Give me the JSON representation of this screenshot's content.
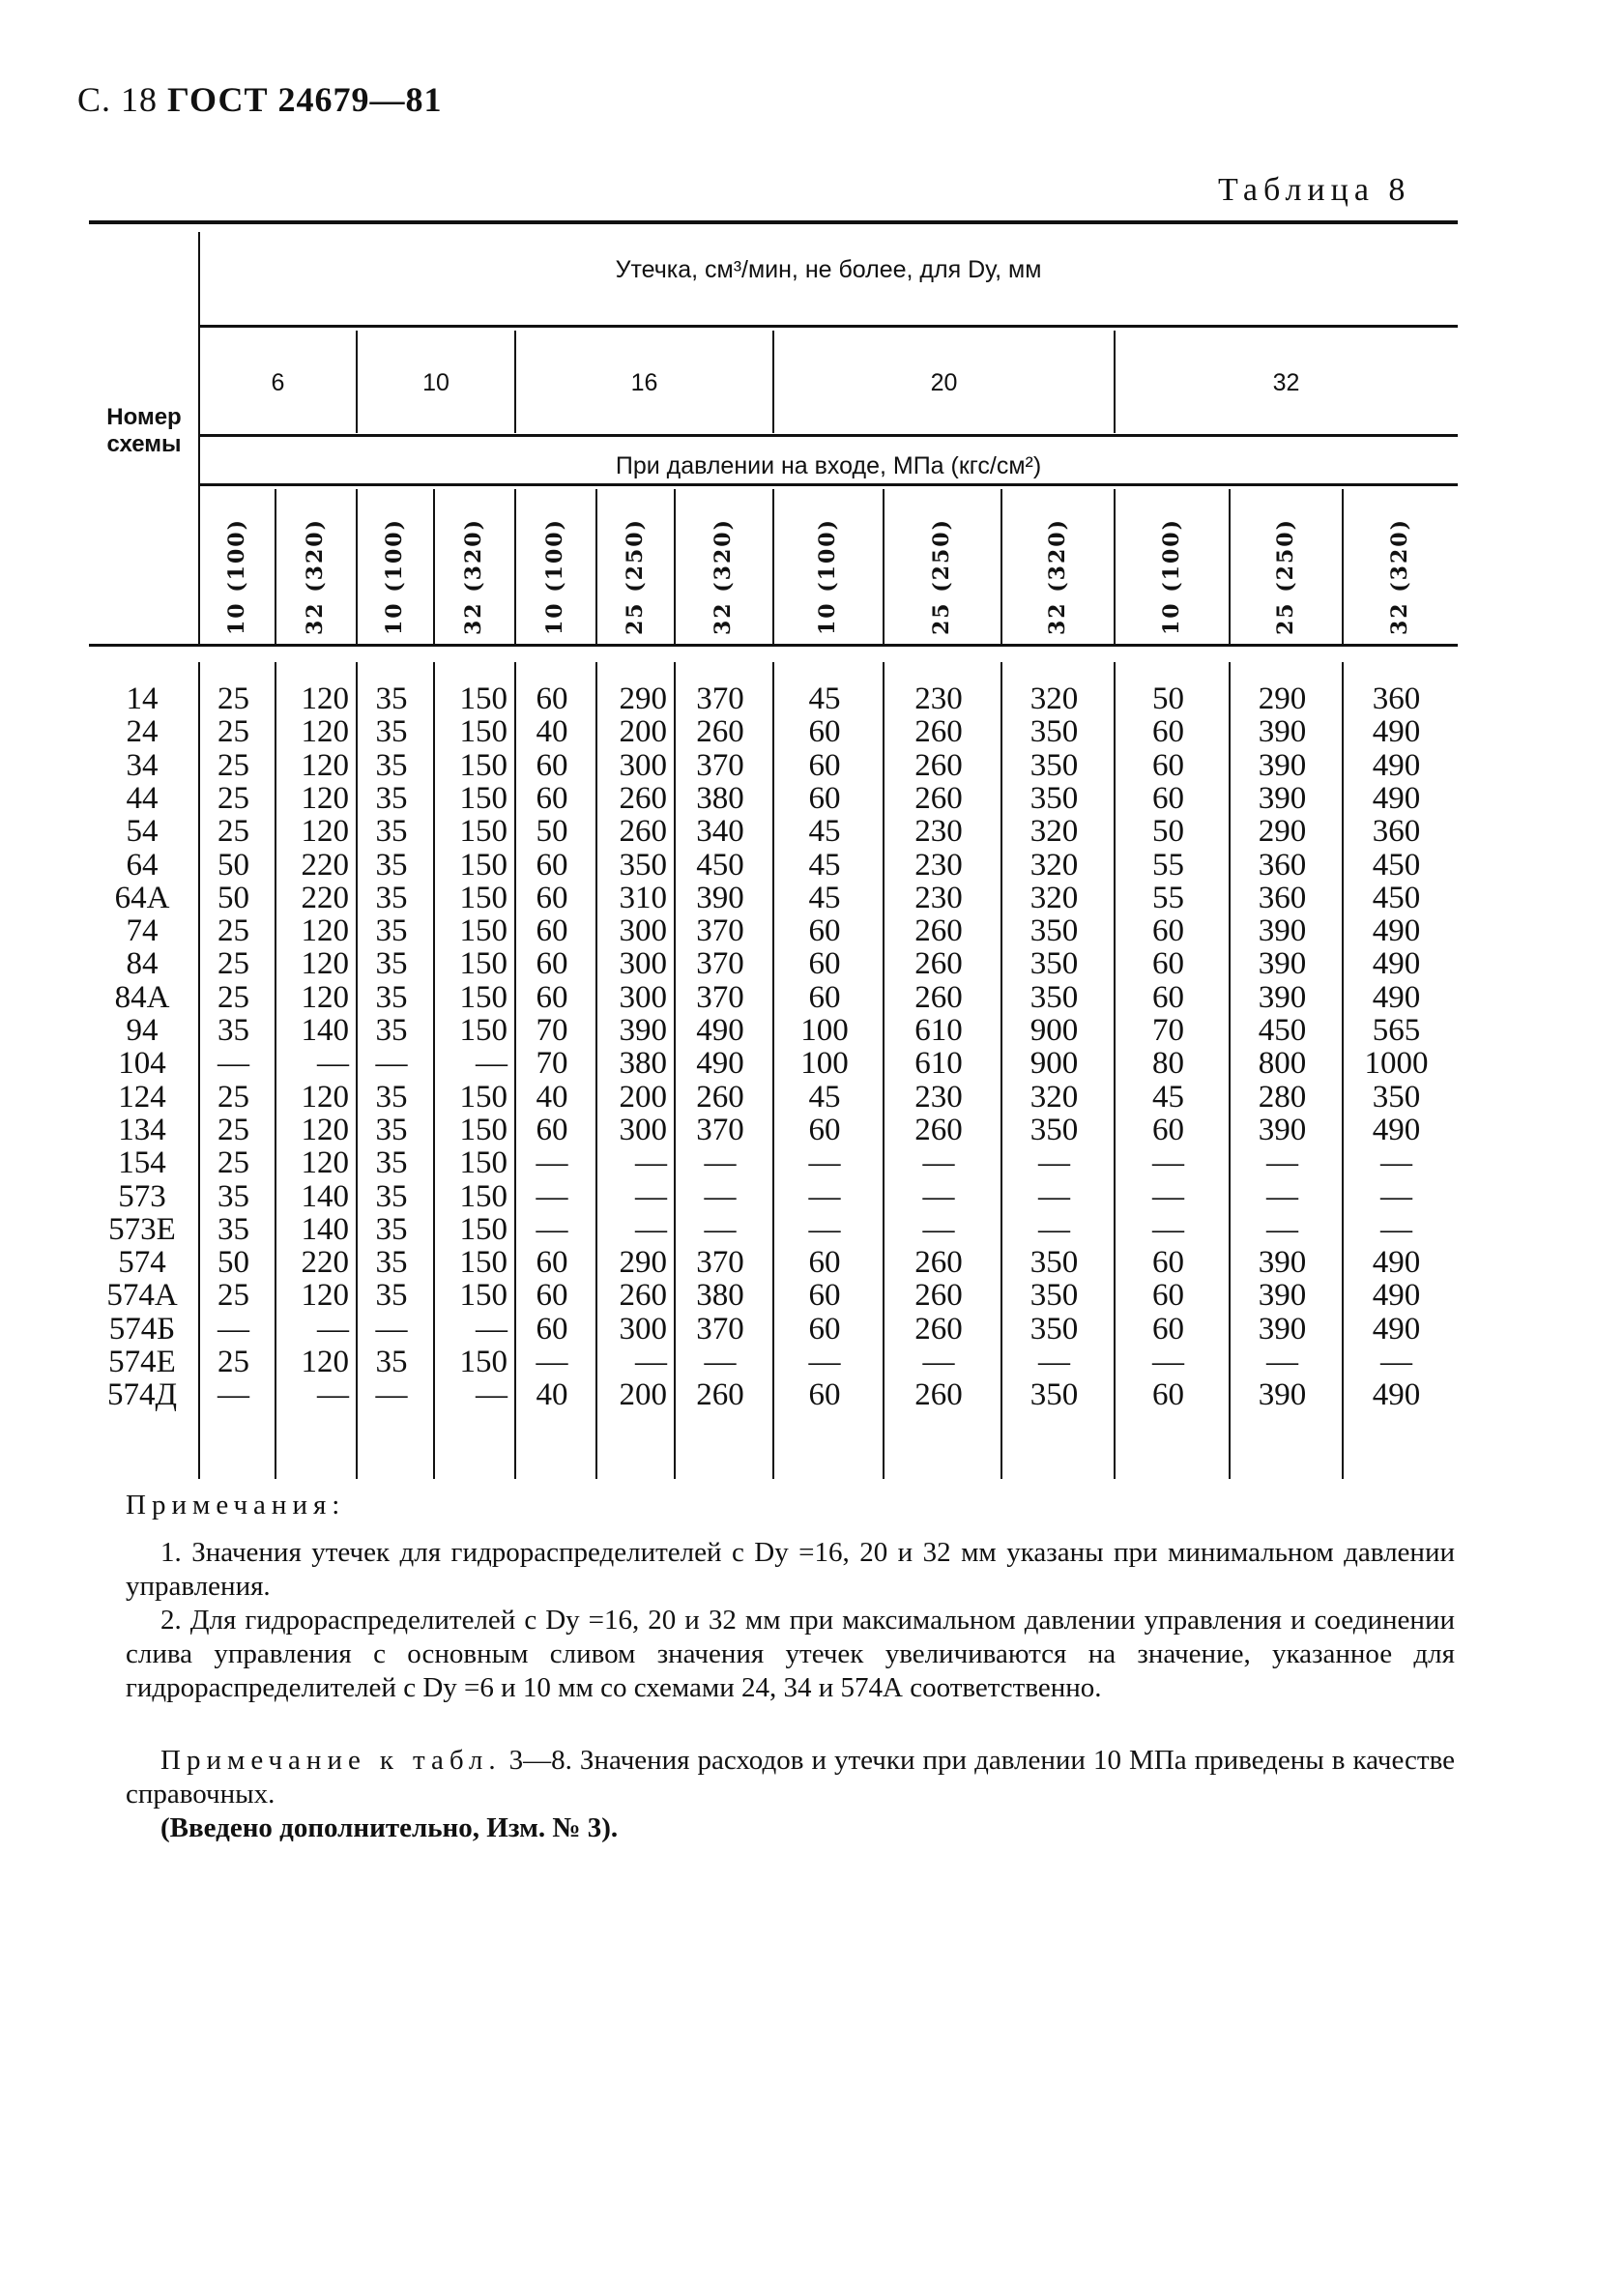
{
  "page_header": {
    "page": "С. 18",
    "standard": "ГОСТ 24679—81"
  },
  "table_label": "Таблица 8",
  "table": {
    "scheme_header": [
      "Номер",
      "схемы"
    ],
    "leak_header": "Утечка, см³/мин, не более, для Dу, мм",
    "dy_values": [
      "6",
      "10",
      "16",
      "20",
      "32"
    ],
    "pressure_header": "При давлении на входе, МПа (кгс/см²)",
    "pressure_columns": [
      "10 (100)",
      "32 (320)",
      "10 (100)",
      "32 (320)",
      "10 (100)",
      "25 (250)",
      "32 (320)",
      "10 (100)",
      "25 (250)",
      "32 (320)",
      "10 (100)",
      "25 (250)",
      "32 (320)"
    ],
    "rows": [
      {
        "scheme": "14",
        "values": [
          "25",
          "120",
          "35",
          "150",
          "60",
          "290",
          "370",
          "45",
          "230",
          "320",
          "50",
          "290",
          "360"
        ]
      },
      {
        "scheme": "24",
        "values": [
          "25",
          "120",
          "35",
          "150",
          "40",
          "200",
          "260",
          "60",
          "260",
          "350",
          "60",
          "390",
          "490"
        ]
      },
      {
        "scheme": "34",
        "values": [
          "25",
          "120",
          "35",
          "150",
          "60",
          "300",
          "370",
          "60",
          "260",
          "350",
          "60",
          "390",
          "490"
        ]
      },
      {
        "scheme": "44",
        "values": [
          "25",
          "120",
          "35",
          "150",
          "60",
          "260",
          "380",
          "60",
          "260",
          "350",
          "60",
          "390",
          "490"
        ]
      },
      {
        "scheme": "54",
        "values": [
          "25",
          "120",
          "35",
          "150",
          "50",
          "260",
          "340",
          "45",
          "230",
          "320",
          "50",
          "290",
          "360"
        ]
      },
      {
        "scheme": "64",
        "values": [
          "50",
          "220",
          "35",
          "150",
          "60",
          "350",
          "450",
          "45",
          "230",
          "320",
          "55",
          "360",
          "450"
        ]
      },
      {
        "scheme": "64А",
        "values": [
          "50",
          "220",
          "35",
          "150",
          "60",
          "310",
          "390",
          "45",
          "230",
          "320",
          "55",
          "360",
          "450"
        ]
      },
      {
        "scheme": "74",
        "values": [
          "25",
          "120",
          "35",
          "150",
          "60",
          "300",
          "370",
          "60",
          "260",
          "350",
          "60",
          "390",
          "490"
        ]
      },
      {
        "scheme": "84",
        "values": [
          "25",
          "120",
          "35",
          "150",
          "60",
          "300",
          "370",
          "60",
          "260",
          "350",
          "60",
          "390",
          "490"
        ]
      },
      {
        "scheme": "84А",
        "values": [
          "25",
          "120",
          "35",
          "150",
          "60",
          "300",
          "370",
          "60",
          "260",
          "350",
          "60",
          "390",
          "490"
        ]
      },
      {
        "scheme": "94",
        "values": [
          "35",
          "140",
          "35",
          "150",
          "70",
          "390",
          "490",
          "100",
          "610",
          "900",
          "70",
          "450",
          "565"
        ]
      },
      {
        "scheme": "104",
        "values": [
          "—",
          "—",
          "—",
          "—",
          "70",
          "380",
          "490",
          "100",
          "610",
          "900",
          "80",
          "800",
          "1000"
        ]
      },
      {
        "scheme": "124",
        "values": [
          "25",
          "120",
          "35",
          "150",
          "40",
          "200",
          "260",
          "45",
          "230",
          "320",
          "45",
          "280",
          "350"
        ]
      },
      {
        "scheme": "134",
        "values": [
          "25",
          "120",
          "35",
          "150",
          "60",
          "300",
          "370",
          "60",
          "260",
          "350",
          "60",
          "390",
          "490"
        ]
      },
      {
        "scheme": "154",
        "values": [
          "25",
          "120",
          "35",
          "150",
          "—",
          "—",
          "—",
          "—",
          "—",
          "—",
          "—",
          "—",
          "—"
        ]
      },
      {
        "scheme": "573",
        "values": [
          "35",
          "140",
          "35",
          "150",
          "—",
          "—",
          "—",
          "—",
          "—",
          "—",
          "—",
          "—",
          "—"
        ]
      },
      {
        "scheme": "573Е",
        "values": [
          "35",
          "140",
          "35",
          "150",
          "—",
          "—",
          "—",
          "—",
          "—",
          "—",
          "—",
          "—",
          "—"
        ]
      },
      {
        "scheme": "574",
        "values": [
          "50",
          "220",
          "35",
          "150",
          "60",
          "290",
          "370",
          "60",
          "260",
          "350",
          "60",
          "390",
          "490"
        ]
      },
      {
        "scheme": "574А",
        "values": [
          "25",
          "120",
          "35",
          "150",
          "60",
          "260",
          "380",
          "60",
          "260",
          "350",
          "60",
          "390",
          "490"
        ]
      },
      {
        "scheme": "574Б",
        "values": [
          "—",
          "—",
          "—",
          "—",
          "60",
          "300",
          "370",
          "60",
          "260",
          "350",
          "60",
          "390",
          "490"
        ]
      },
      {
        "scheme": "574Е",
        "values": [
          "25",
          "120",
          "35",
          "150",
          "—",
          "—",
          "—",
          "—",
          "—",
          "—",
          "—",
          "—",
          "—"
        ]
      },
      {
        "scheme": "574Д",
        "values": [
          "—",
          "—",
          "—",
          "—",
          "40",
          "200",
          "260",
          "60",
          "260",
          "350",
          "60",
          "390",
          "490"
        ]
      }
    ]
  },
  "notes": {
    "title": "Примечания:",
    "note1": "1. Значения утечек для гидрораспределителей с Dу =16, 20 и 32 мм указаны при минимальном давлении управления.",
    "note2": "2. Для гидрораспределителей с Dу =16, 20 и 32 мм при максимальном давлении управления и соединении слива управления с основным сливом значения утечек увеличиваются на значение, указанное для гидрораспределителей с Dу =6 и 10 мм со схемами 24, 34 и 574А соответственно.",
    "remark_label": "Примечание к табл.",
    "remark_text": "3—8. Значения расходов и утечки при давлении 10 МПа приведены в качестве справочных.",
    "amendment": "(Введено дополнительно, Изм. № 3)."
  }
}
